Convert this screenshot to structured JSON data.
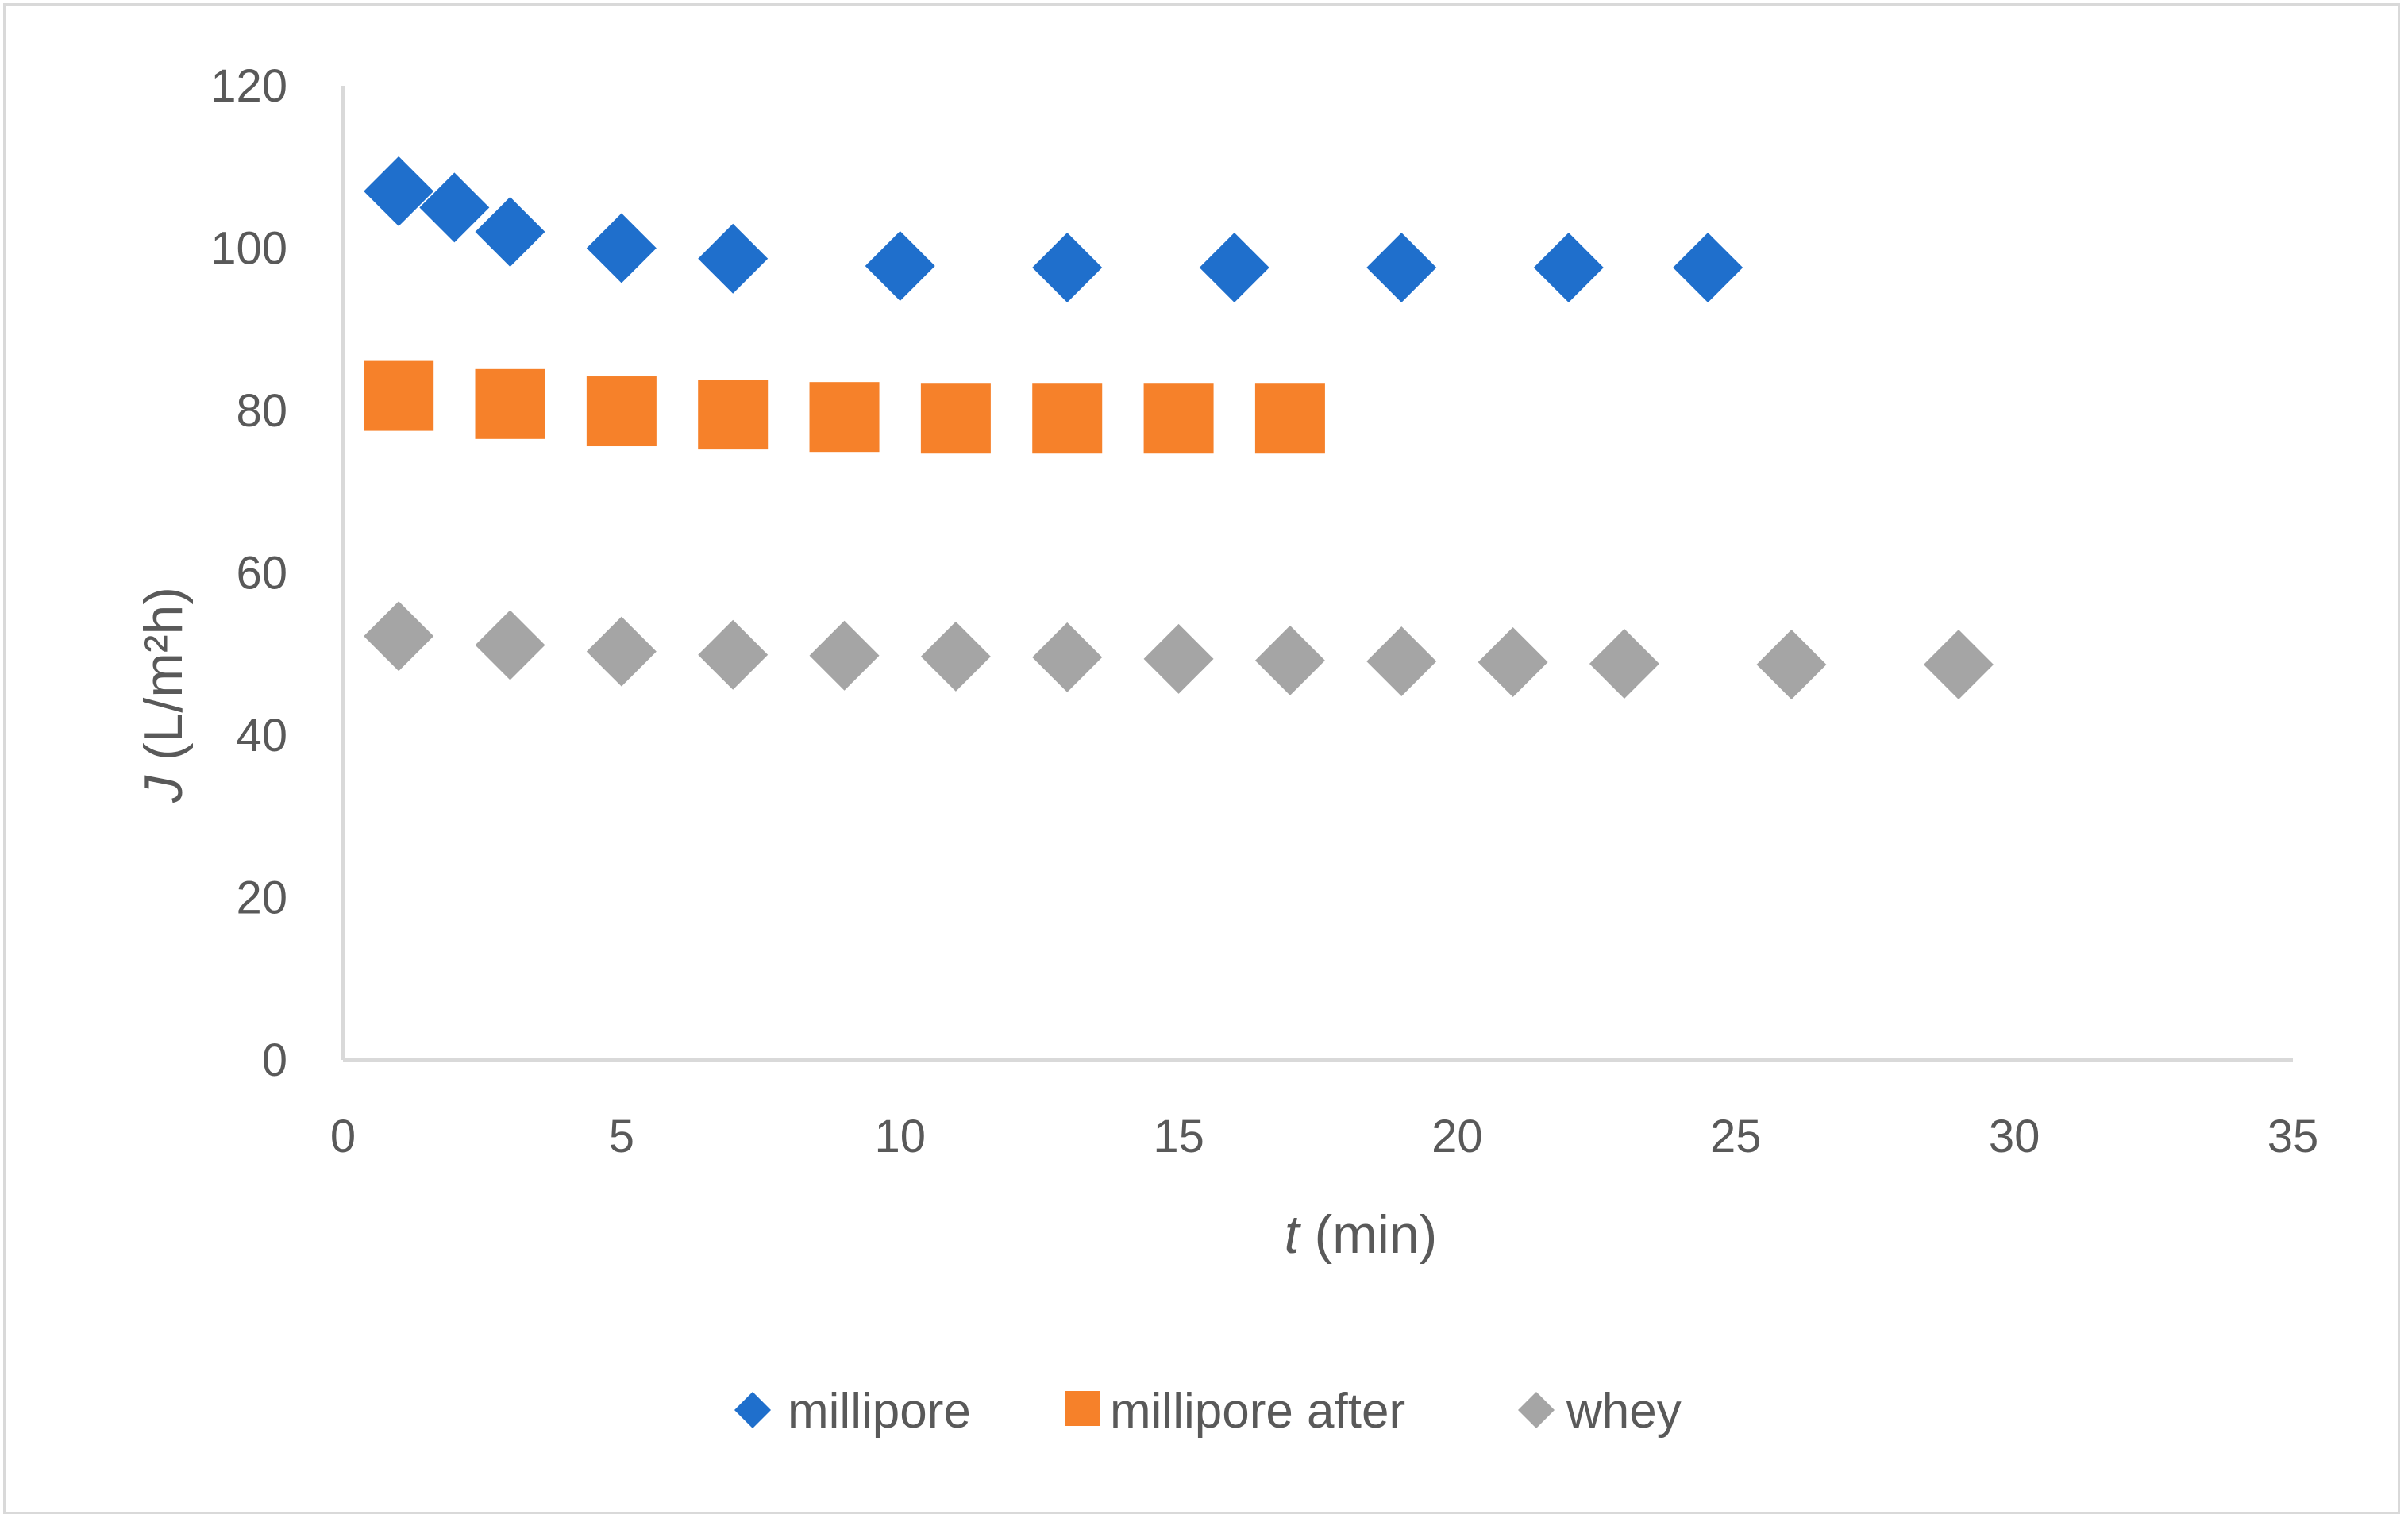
{
  "chart_data": {
    "type": "scatter",
    "title": "",
    "xlabel_var": "t",
    "xlabel_unit": " (min)",
    "ylabel_var": "J",
    "ylabel_unit": " (L/m²h)",
    "xlim": [
      0,
      35
    ],
    "ylim": [
      0,
      120
    ],
    "xticks": [
      0,
      5,
      10,
      15,
      20,
      25,
      30,
      35
    ],
    "yticks": [
      0,
      20,
      40,
      60,
      80,
      100,
      120
    ],
    "grid": false,
    "legend_position": "bottom",
    "series": [
      {
        "name": "millipore",
        "marker": "diamond",
        "color": "#1f6fcc",
        "points": [
          [
            1,
            107
          ],
          [
            2,
            105
          ],
          [
            3,
            102
          ],
          [
            5,
            100
          ],
          [
            7,
            98.7
          ],
          [
            10,
            97.8
          ],
          [
            13,
            97.6
          ],
          [
            16,
            97.6
          ],
          [
            19,
            97.6
          ],
          [
            22,
            97.6
          ],
          [
            24.5,
            97.6
          ]
        ]
      },
      {
        "name": "millipore after",
        "marker": "square",
        "color": "#f6812a",
        "points": [
          [
            1,
            81.8
          ],
          [
            3,
            80.8
          ],
          [
            5,
            79.9
          ],
          [
            7,
            79.5
          ],
          [
            9,
            79.2
          ],
          [
            11,
            79.0
          ],
          [
            13,
            79.0
          ],
          [
            15,
            79.0
          ],
          [
            17,
            79.0
          ]
        ]
      },
      {
        "name": "whey",
        "marker": "diamond",
        "color": "#a5a5a5",
        "points": [
          [
            1,
            52.2
          ],
          [
            3,
            51.1
          ],
          [
            5,
            50.3
          ],
          [
            7,
            49.9
          ],
          [
            9,
            49.8
          ],
          [
            11,
            49.7
          ],
          [
            13,
            49.6
          ],
          [
            15,
            49.4
          ],
          [
            17,
            49.2
          ],
          [
            19,
            49.1
          ],
          [
            21,
            49.0
          ],
          [
            23,
            48.8
          ],
          [
            26,
            48.7
          ],
          [
            29,
            48.7
          ]
        ]
      }
    ]
  }
}
